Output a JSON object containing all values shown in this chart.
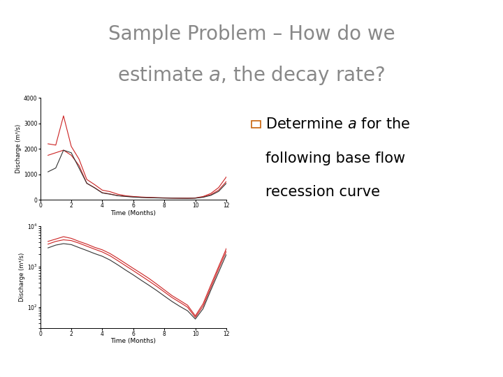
{
  "title_line1": "Sample Problem – How do we",
  "title_line2": "estimate a, the decay rate?",
  "title_fontsize": 20,
  "title_color": "#888888",
  "background_color": "#ffffff",
  "bullet_color": "#c8640a",
  "bullet_fontsize": 15,
  "top_plot": {
    "time": [
      0.5,
      1.0,
      1.5,
      2.0,
      2.5,
      3.0,
      3.5,
      4.0,
      4.5,
      5.0,
      5.5,
      6.0,
      6.5,
      7.0,
      7.5,
      8.0,
      8.5,
      9.0,
      9.5,
      10.0,
      10.5,
      11.0,
      11.5,
      12.0
    ],
    "red1": [
      2200,
      2150,
      3300,
      2100,
      1600,
      800,
      600,
      380,
      320,
      220,
      160,
      130,
      110,
      95,
      85,
      78,
      72,
      68,
      65,
      75,
      130,
      250,
      480,
      900
    ],
    "red2": [
      1750,
      1850,
      1950,
      1750,
      1350,
      650,
      480,
      280,
      230,
      165,
      138,
      118,
      100,
      88,
      78,
      70,
      66,
      63,
      60,
      68,
      110,
      200,
      380,
      720
    ],
    "black": [
      1100,
      1250,
      1950,
      1850,
      1250,
      650,
      470,
      270,
      220,
      160,
      132,
      108,
      90,
      82,
      73,
      67,
      63,
      60,
      57,
      63,
      100,
      175,
      330,
      650
    ],
    "ylabel": "Discharge (m³/s)",
    "xlabel": "Time (Months)",
    "ylim": [
      0,
      4000
    ],
    "yticks": [
      0,
      1000,
      2000,
      3000,
      4000
    ],
    "xticks": [
      0,
      2,
      4,
      6,
      8,
      10,
      12
    ]
  },
  "bot_plot": {
    "time": [
      0.5,
      1.0,
      1.5,
      2.0,
      2.5,
      3.0,
      3.5,
      4.0,
      4.5,
      5.0,
      5.5,
      6.0,
      6.5,
      7.0,
      7.5,
      8.0,
      8.5,
      9.0,
      9.5,
      10.0,
      10.5,
      11.0,
      11.5,
      12.0
    ],
    "red1": [
      4200,
      4800,
      5500,
      5000,
      4200,
      3600,
      3000,
      2600,
      2100,
      1600,
      1200,
      900,
      680,
      510,
      370,
      265,
      190,
      145,
      110,
      60,
      120,
      350,
      1000,
      2800
    ],
    "red2": [
      3600,
      4200,
      4600,
      4400,
      3800,
      3200,
      2700,
      2300,
      1850,
      1400,
      1050,
      790,
      590,
      440,
      325,
      235,
      170,
      130,
      98,
      55,
      105,
      300,
      870,
      2400
    ],
    "black": [
      2900,
      3400,
      3700,
      3500,
      2950,
      2500,
      2100,
      1800,
      1450,
      1100,
      820,
      620,
      460,
      345,
      256,
      186,
      136,
      103,
      80,
      50,
      90,
      260,
      720,
      2000
    ],
    "ylabel": "Discharge (m³/s)",
    "xlabel": "Time (Months)",
    "ylim_log": [
      30,
      10000
    ],
    "xticks": [
      0,
      2,
      4,
      6,
      8,
      10,
      12
    ]
  }
}
